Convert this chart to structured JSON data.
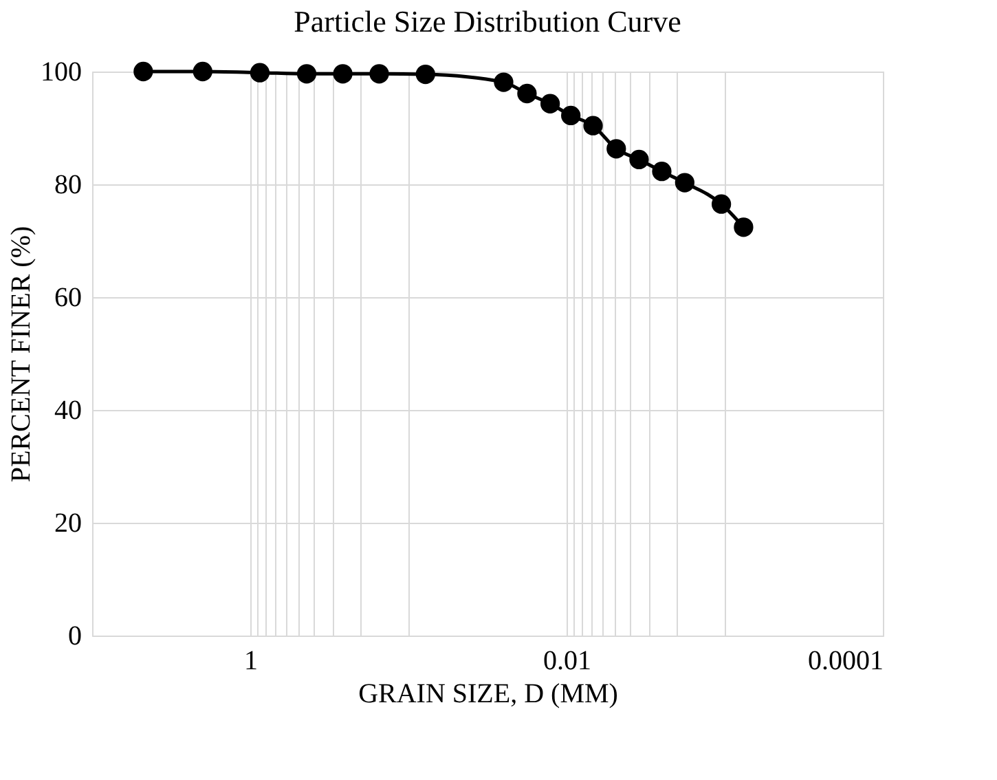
{
  "chart_data": {
    "type": "line",
    "title": "Particle Size Distribution Curve",
    "xlabel": "GRAIN SIZE, D (MM)",
    "ylabel": "PERCENT FINER (%)",
    "log": "x",
    "marker": "circle",
    "line_style": "solid",
    "grid": true,
    "xlim": [
      10,
      0.0001
    ],
    "xticks": [
      {
        "value": 10,
        "label": null
      },
      1,
      {
        "value": 0.9,
        "label": null
      },
      {
        "value": 0.8,
        "label": null
      },
      {
        "value": 0.7,
        "label": null
      },
      {
        "value": 0.6,
        "label": null
      },
      {
        "value": 0.5,
        "label": null
      },
      {
        "value": 0.4,
        "label": null
      },
      {
        "value": 0.3,
        "label": null
      },
      {
        "value": 0.2,
        "label": null
      },
      {
        "value": 0.1,
        "label": null
      },
      0.01,
      {
        "value": 0.009,
        "label": null
      },
      {
        "value": 0.008,
        "label": null
      },
      {
        "value": 0.007,
        "label": null
      },
      {
        "value": 0.006,
        "label": null
      },
      {
        "value": 0.005,
        "label": null
      },
      {
        "value": 0.004,
        "label": null
      },
      {
        "value": 0.003,
        "label": null
      },
      {
        "value": 0.002,
        "label": null
      },
      {
        "value": 0.001,
        "label": null
      },
      0.0001
    ],
    "ylim": [
      0,
      100
    ],
    "yticks": [
      0,
      20,
      40,
      60,
      80,
      100
    ],
    "series": [
      {
        "color": "#000000",
        "x": [
          4.75,
          2.0,
          0.87,
          0.44,
          0.26,
          0.153,
          0.078,
          0.025,
          0.0178,
          0.0127,
          0.0094,
          0.0068,
          0.00485,
          0.00348,
          0.0025,
          0.00179,
          0.00105,
          0.00076
        ],
        "values": [
          100,
          100,
          99.8,
          99.6,
          99.6,
          99.6,
          99.5,
          98.1,
          96.1,
          94.3,
          92.2,
          90.4,
          86.3,
          84.4,
          82.3,
          80.3,
          76.5,
          72.4
        ]
      }
    ]
  }
}
